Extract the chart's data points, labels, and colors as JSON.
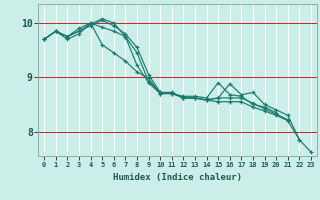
{
  "xlabel": "Humidex (Indice chaleur)",
  "bg_color": "#cceee8",
  "grid_color": "#ffffff",
  "line_color": "#1a7a6e",
  "series": [
    {
      "x": [
        0,
        1,
        2,
        3,
        4,
        5,
        6,
        7,
        8,
        9,
        10,
        11,
        12,
        13,
        14,
        15,
        16,
        17,
        18,
        19,
        20
      ],
      "y": [
        9.7,
        9.85,
        9.75,
        9.9,
        10.0,
        9.6,
        9.45,
        9.3,
        9.1,
        8.98,
        8.7,
        8.7,
        8.65,
        8.65,
        8.62,
        8.9,
        8.68,
        8.65,
        8.5,
        8.45,
        8.35
      ]
    },
    {
      "x": [
        0,
        1,
        2,
        3,
        4,
        5,
        6,
        7,
        8,
        9,
        10,
        11,
        12,
        13,
        14,
        15,
        16,
        17,
        18,
        19,
        20,
        21,
        22
      ],
      "y": [
        9.7,
        9.85,
        9.75,
        9.85,
        9.95,
        10.05,
        9.95,
        9.8,
        9.55,
        9.05,
        8.72,
        8.72,
        8.62,
        8.62,
        8.58,
        8.55,
        8.55,
        8.55,
        8.45,
        8.38,
        8.3,
        8.2,
        7.85
      ]
    },
    {
      "x": [
        0,
        1,
        2,
        3,
        4,
        5,
        6,
        7,
        8,
        9,
        10,
        11,
        12,
        13,
        14,
        15,
        16,
        17,
        18,
        19,
        20,
        21
      ],
      "y": [
        9.7,
        9.85,
        9.75,
        9.85,
        9.98,
        10.08,
        10.0,
        9.75,
        9.45,
        8.92,
        8.72,
        8.72,
        8.62,
        8.62,
        8.58,
        8.62,
        8.62,
        8.62,
        8.52,
        8.42,
        8.32,
        8.22
      ]
    },
    {
      "x": [
        0,
        1,
        2,
        3,
        4,
        5,
        6,
        7,
        8,
        9,
        10,
        11,
        12,
        13,
        14,
        15,
        16,
        17,
        18,
        19,
        20,
        21,
        22,
        23
      ],
      "y": [
        9.7,
        9.85,
        9.7,
        9.8,
        10.0,
        9.92,
        9.85,
        9.75,
        9.22,
        8.9,
        8.7,
        8.7,
        8.62,
        8.62,
        8.58,
        8.62,
        8.88,
        8.68,
        8.72,
        8.5,
        8.4,
        8.3,
        7.85,
        7.62
      ]
    }
  ],
  "xlim": [
    -0.5,
    23.5
  ],
  "ylim": [
    7.55,
    10.35
  ],
  "yticks": [
    8,
    9,
    10
  ],
  "xtick_labels": [
    "0",
    "1",
    "2",
    "3",
    "4",
    "5",
    "6",
    "7",
    "8",
    "9",
    "10",
    "11",
    "12",
    "13",
    "14",
    "15",
    "16",
    "17",
    "18",
    "19",
    "20",
    "21",
    "22",
    "23"
  ],
  "red_hlines": [
    8.0,
    9.0,
    10.0
  ]
}
